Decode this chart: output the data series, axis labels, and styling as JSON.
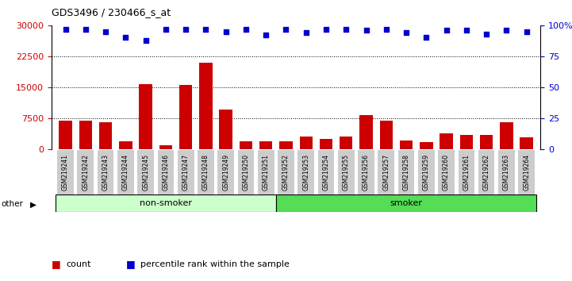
{
  "title": "GDS3496 / 230466_s_at",
  "samples": [
    "GSM219241",
    "GSM219242",
    "GSM219243",
    "GSM219244",
    "GSM219245",
    "GSM219246",
    "GSM219247",
    "GSM219248",
    "GSM219249",
    "GSM219250",
    "GSM219251",
    "GSM219252",
    "GSM219253",
    "GSM219254",
    "GSM219255",
    "GSM219256",
    "GSM219257",
    "GSM219258",
    "GSM219259",
    "GSM219260",
    "GSM219261",
    "GSM219262",
    "GSM219263",
    "GSM219264"
  ],
  "counts": [
    6800,
    6950,
    6400,
    1800,
    15800,
    900,
    15600,
    21000,
    9600,
    1800,
    1800,
    1900,
    3000,
    2400,
    3100,
    8200,
    6900,
    2000,
    1600,
    3800,
    3400,
    3300,
    6500,
    2800
  ],
  "percentiles": [
    97,
    97,
    95,
    90,
    88,
    97,
    97,
    97,
    95,
    97,
    92,
    97,
    94,
    97,
    97,
    96,
    97,
    94,
    90,
    96,
    96,
    93,
    96,
    95
  ],
  "bar_color": "#cc0000",
  "dot_color": "#0000cc",
  "left_ylim": [
    0,
    30000
  ],
  "right_ylim": [
    0,
    100
  ],
  "left_yticks": [
    0,
    7500,
    15000,
    22500,
    30000
  ],
  "right_yticks": [
    0,
    25,
    50,
    75,
    100
  ],
  "group1_label": "non-smoker",
  "group2_label": "smoker",
  "group1_color": "#ccffcc",
  "group2_color": "#55dd55",
  "other_label": "other",
  "bg_color": "#ffffff",
  "legend_count_label": "count",
  "legend_pct_label": "percentile rank within the sample",
  "non_smoker_count": 11,
  "smoker_count": 13,
  "tick_bg_color": "#cccccc"
}
